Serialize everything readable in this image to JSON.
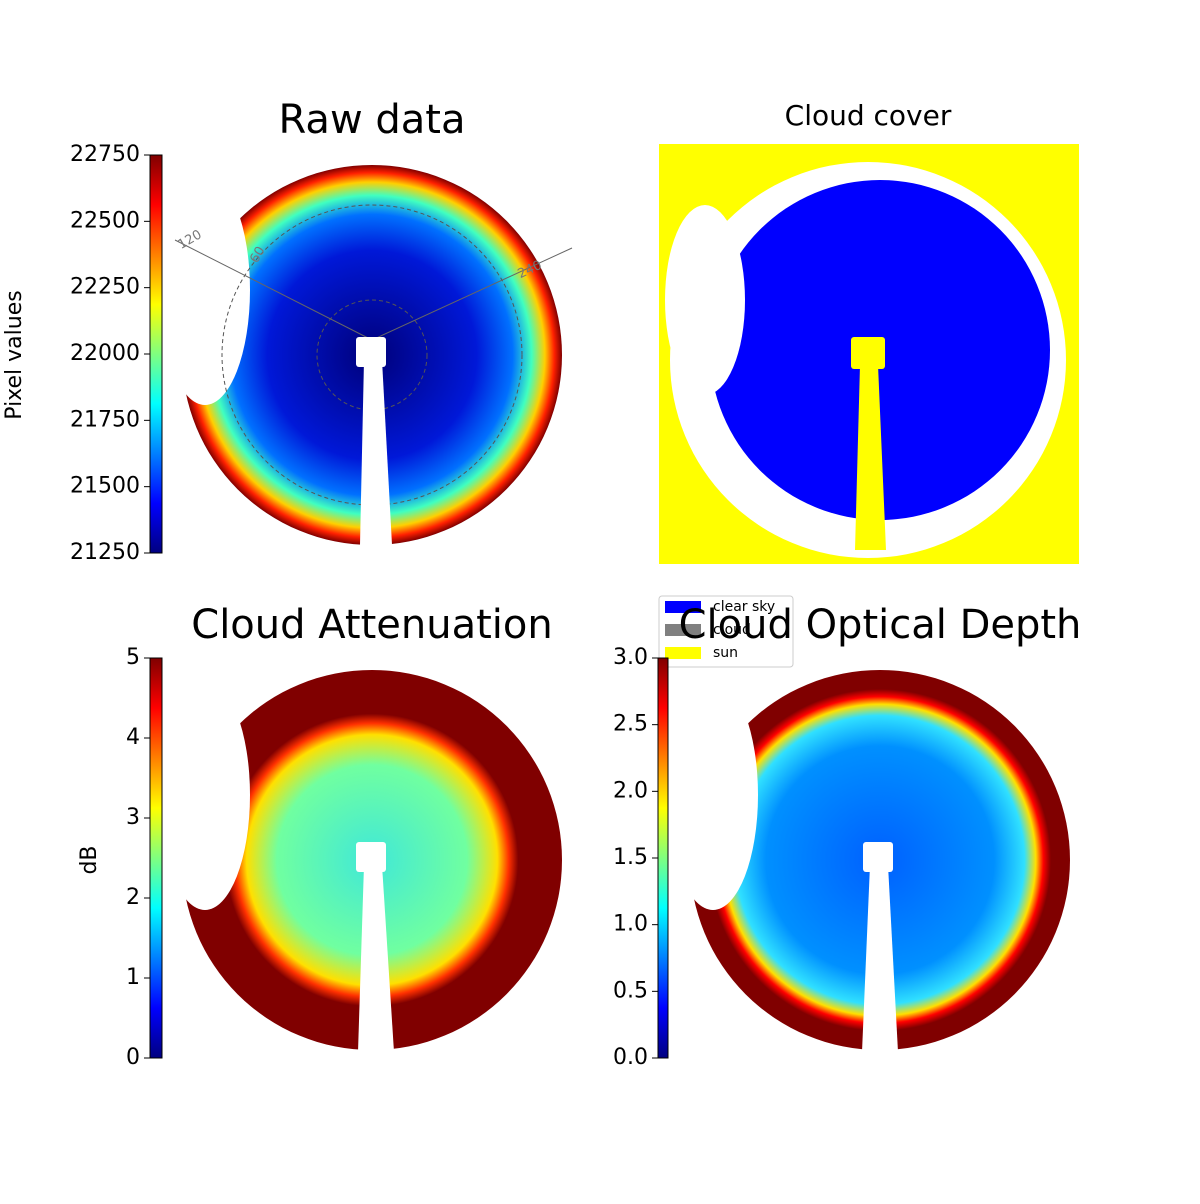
{
  "chart_data": [
    {
      "type": "image",
      "title": "Raw data",
      "annotations": [
        "120",
        "60",
        "240"
      ],
      "colorbar": {
        "label": "Pixel values",
        "colormap": "jet",
        "lim": [
          21250,
          22750
        ],
        "ticks": [
          21250,
          21500,
          21750,
          22000,
          22250,
          22500,
          22750
        ]
      }
    },
    {
      "type": "image",
      "title": "Cloud cover",
      "legend": [
        {
          "name": "clear sky",
          "color": "#0000ff"
        },
        {
          "name": "cloud",
          "color": "#808080"
        },
        {
          "name": "sun",
          "color": "#ffff00"
        }
      ]
    },
    {
      "type": "image",
      "title": "Cloud Attenuation",
      "colorbar": {
        "label": "dB",
        "colormap": "jet",
        "lim": [
          0,
          5
        ],
        "ticks": [
          0,
          1,
          2,
          3,
          4,
          5
        ]
      }
    },
    {
      "type": "image",
      "title": "Cloud Optical Depth",
      "colorbar": {
        "colormap": "jet",
        "lim": [
          0,
          3
        ],
        "ticks": [
          {
            "value": 0,
            "label": "0.0"
          },
          {
            "value": 0.5,
            "label": "0.5"
          },
          {
            "value": 1,
            "label": "1.0"
          },
          {
            "value": 1.5,
            "label": "1.5"
          },
          {
            "value": 2,
            "label": "2.0"
          },
          {
            "value": 2.5,
            "label": "2.5"
          },
          {
            "value": 3,
            "label": "3.0"
          }
        ]
      }
    }
  ]
}
